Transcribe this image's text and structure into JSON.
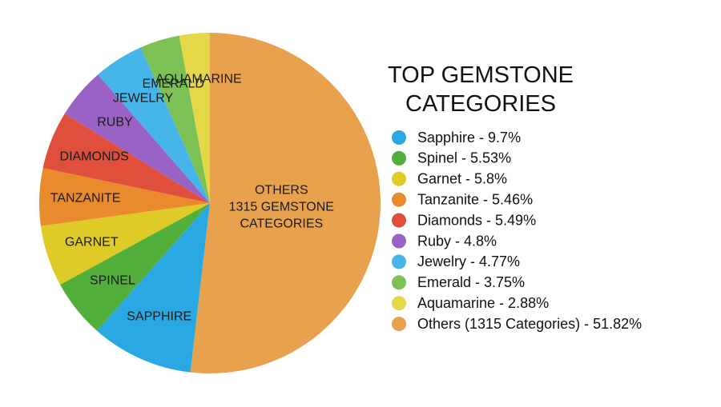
{
  "chart_data": {
    "type": "pie",
    "title": "TOP GEMSTONE CATEGORIES",
    "categories": [
      "OTHERS\n1315 GEMSTONE\nCATEGORIES",
      "SAPPHIRE",
      "SPINEL",
      "GARNET",
      "TANZANITE",
      "DIAMONDS",
      "RUBY",
      "JEWELRY",
      "EMERALD",
      "AQUAMARINE"
    ],
    "values": [
      51.82,
      9.7,
      5.53,
      5.8,
      5.46,
      5.49,
      4.8,
      4.77,
      3.75,
      2.88
    ],
    "colors": [
      "#e8a24e",
      "#2aa8e2",
      "#52af3c",
      "#dfcb28",
      "#e98b2c",
      "#df4f3c",
      "#9a62c4",
      "#46b6ea",
      "#7bc156",
      "#e5d848"
    ],
    "legend_labels": [
      "Others (1315 Categories) - 51.82%",
      "Sapphire - 9.7%",
      "Spinel - 5.53%",
      "Garnet - 5.8%",
      "Tanzanite - 5.46%",
      "Diamonds - 5.49%",
      "Ruby - 4.8%",
      "Jewelry - 4.77%",
      "Emerald - 3.75%",
      "Aquamarine - 2.88%"
    ]
  }
}
